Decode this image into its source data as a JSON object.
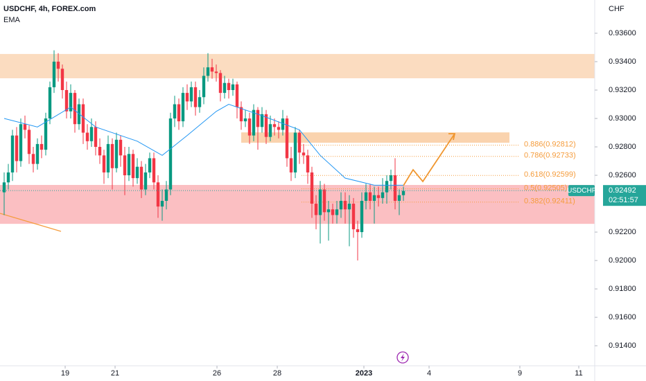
{
  "chart_data": {
    "type": "candlestick",
    "title": "USDCHF, 4h, FOREX.com",
    "indicator": "EMA",
    "currency": "CHF",
    "ylim": [
      0.91259,
      0.93834
    ],
    "yticks": [
      {
        "value": 0.936,
        "label": "0.93600"
      },
      {
        "value": 0.934,
        "label": "0.93400"
      },
      {
        "value": 0.932,
        "label": "0.93200"
      },
      {
        "value": 0.93,
        "label": "0.93000"
      },
      {
        "value": 0.928,
        "label": "0.92800"
      },
      {
        "value": 0.926,
        "label": "0.92600"
      },
      {
        "value": 0.922,
        "label": "0.92200"
      },
      {
        "value": 0.92,
        "label": "0.92000"
      },
      {
        "value": 0.918,
        "label": "0.91800"
      },
      {
        "value": 0.916,
        "label": "0.91600"
      },
      {
        "value": 0.914,
        "label": "0.91400"
      }
    ],
    "xlim": [
      -1,
      142
    ],
    "xticks": [
      {
        "value": 14.67,
        "label": "19"
      },
      {
        "value": 26.67,
        "label": "21"
      },
      {
        "value": 51.17,
        "label": "26"
      },
      {
        "value": 65.67,
        "label": "28"
      },
      {
        "value": 86.5,
        "label": "2023"
      },
      {
        "value": 102.17,
        "label": "4"
      },
      {
        "value": 124,
        "label": "9"
      },
      {
        "value": 138.17,
        "label": "11"
      }
    ],
    "up_color": "#089981",
    "down_color": "#f23645",
    "candles": {
      "open": [
        0.9248,
        0.9255,
        0.9262,
        0.9288,
        0.927,
        0.9296,
        0.9292,
        0.9275,
        0.9268,
        0.9282,
        0.9278,
        0.93,
        0.9322,
        0.934,
        0.9335,
        0.932,
        0.9305,
        0.9318,
        0.9296,
        0.931,
        0.929,
        0.9284,
        0.9294,
        0.928,
        0.9274,
        0.9262,
        0.9282,
        0.9265,
        0.9285,
        0.9274,
        0.926,
        0.9275,
        0.9258,
        0.9266,
        0.925,
        0.9262,
        0.9272,
        0.9255,
        0.9238,
        0.9242,
        0.925,
        0.93,
        0.931,
        0.9298,
        0.9318,
        0.9312,
        0.9322,
        0.9308,
        0.9315,
        0.933,
        0.9336,
        0.9333,
        0.9332,
        0.9318,
        0.9325,
        0.932,
        0.9324,
        0.9308,
        0.9298,
        0.93,
        0.9288,
        0.9306,
        0.9294,
        0.9303,
        0.9287,
        0.9296,
        0.9294,
        0.9292,
        0.93,
        0.9272,
        0.9262,
        0.929,
        0.9276,
        0.9274,
        0.9262,
        0.924,
        0.9232,
        0.925,
        0.9234,
        0.9236,
        0.9232,
        0.9236,
        0.9242,
        0.9236,
        0.924,
        0.9222,
        0.922,
        0.9242,
        0.9248,
        0.9242,
        0.9246,
        0.9244,
        0.9248,
        0.9256,
        0.926,
        0.9242,
        0.9246
      ],
      "high": [
        0.9262,
        0.9268,
        0.9292,
        0.9294,
        0.93,
        0.9302,
        0.9295,
        0.928,
        0.9286,
        0.9288,
        0.9304,
        0.9326,
        0.9348,
        0.9346,
        0.9338,
        0.9326,
        0.9324,
        0.932,
        0.9314,
        0.9314,
        0.9296,
        0.93,
        0.9298,
        0.9286,
        0.9278,
        0.9288,
        0.9286,
        0.929,
        0.9288,
        0.928,
        0.928,
        0.9278,
        0.9272,
        0.927,
        0.9268,
        0.9276,
        0.9276,
        0.926,
        0.925,
        0.9256,
        0.9304,
        0.9316,
        0.9314,
        0.9322,
        0.9324,
        0.9326,
        0.9326,
        0.932,
        0.9336,
        0.9346,
        0.9342,
        0.9338,
        0.9334,
        0.933,
        0.9328,
        0.9328,
        0.9326,
        0.9312,
        0.9306,
        0.9304,
        0.931,
        0.9308,
        0.9308,
        0.9306,
        0.9302,
        0.93,
        0.9298,
        0.9306,
        0.9302,
        0.928,
        0.9294,
        0.9292,
        0.9282,
        0.9278,
        0.9266,
        0.9246,
        0.9256,
        0.9254,
        0.9242,
        0.924,
        0.9242,
        0.9248,
        0.9248,
        0.9246,
        0.9244,
        0.9228,
        0.9248,
        0.9254,
        0.9254,
        0.9252,
        0.9252,
        0.9258,
        0.926,
        0.9264,
        0.9272,
        0.925,
        0.9252
      ],
      "low": [
        0.9232,
        0.925,
        0.9256,
        0.9262,
        0.9266,
        0.9286,
        0.9268,
        0.9262,
        0.9264,
        0.9272,
        0.9274,
        0.9296,
        0.9318,
        0.9326,
        0.9314,
        0.93,
        0.93,
        0.929,
        0.9292,
        0.9282,
        0.9278,
        0.928,
        0.9274,
        0.9268,
        0.9254,
        0.9258,
        0.925,
        0.9262,
        0.9266,
        0.9246,
        0.9256,
        0.9252,
        0.9254,
        0.9244,
        0.9246,
        0.9258,
        0.925,
        0.923,
        0.9228,
        0.9236,
        0.9246,
        0.9294,
        0.9292,
        0.9294,
        0.9306,
        0.9308,
        0.9302,
        0.9304,
        0.931,
        0.9326,
        0.9328,
        0.9326,
        0.9312,
        0.9314,
        0.9314,
        0.9316,
        0.93,
        0.9292,
        0.9294,
        0.9282,
        0.9284,
        0.9278,
        0.929,
        0.9282,
        0.9284,
        0.9288,
        0.9286,
        0.9288,
        0.9266,
        0.9256,
        0.9258,
        0.9268,
        0.9268,
        0.9254,
        0.923,
        0.9222,
        0.9212,
        0.9228,
        0.9214,
        0.9226,
        0.9226,
        0.923,
        0.9226,
        0.921,
        0.9216,
        0.92,
        0.9216,
        0.9236,
        0.9236,
        0.9226,
        0.9238,
        0.924,
        0.924,
        0.925,
        0.9236,
        0.9232,
        0.9242
      ],
      "close": [
        0.9255,
        0.9262,
        0.9288,
        0.927,
        0.9296,
        0.9292,
        0.9275,
        0.9268,
        0.9282,
        0.9278,
        0.93,
        0.9322,
        0.934,
        0.9335,
        0.932,
        0.9305,
        0.9318,
        0.9296,
        0.931,
        0.929,
        0.9284,
        0.9294,
        0.928,
        0.9274,
        0.9262,
        0.9282,
        0.9265,
        0.9285,
        0.9274,
        0.926,
        0.9275,
        0.9258,
        0.9266,
        0.925,
        0.9262,
        0.9272,
        0.9255,
        0.9238,
        0.9242,
        0.925,
        0.93,
        0.931,
        0.9298,
        0.9318,
        0.9312,
        0.9322,
        0.9308,
        0.9315,
        0.933,
        0.9336,
        0.9333,
        0.9332,
        0.9318,
        0.9325,
        0.932,
        0.9324,
        0.9308,
        0.9298,
        0.93,
        0.9288,
        0.9306,
        0.9294,
        0.9303,
        0.9287,
        0.9296,
        0.9294,
        0.9292,
        0.93,
        0.9272,
        0.9262,
        0.929,
        0.9276,
        0.9274,
        0.9262,
        0.924,
        0.9232,
        0.925,
        0.9234,
        0.9236,
        0.9232,
        0.9236,
        0.9242,
        0.9236,
        0.924,
        0.9222,
        0.922,
        0.9242,
        0.9248,
        0.9242,
        0.9246,
        0.9244,
        0.9248,
        0.9256,
        0.926,
        0.9242,
        0.9246,
        0.9249
      ]
    },
    "ema": {
      "color": "#2196f3",
      "x": [
        0,
        8,
        16,
        22,
        32,
        38,
        44,
        51,
        54,
        62,
        71,
        76,
        82,
        89,
        96
      ],
      "values": [
        0.93,
        0.9294,
        0.9308,
        0.9294,
        0.9284,
        0.9274,
        0.9288,
        0.9305,
        0.931,
        0.9302,
        0.9292,
        0.9274,
        0.9258,
        0.9253,
        0.9253
      ]
    },
    "zones": [
      {
        "low": 0.93283,
        "high": 0.93454,
        "color": "#fbdcc0"
      },
      {
        "low": 0.92258,
        "high": 0.92532,
        "color": "#fbbfc2"
      },
      {
        "low": 0.92829,
        "high": 0.92902,
        "color": "#fad3ae"
      }
    ],
    "fib_levels": [
      {
        "value": 0.92812,
        "label": "0.886(0.92812)"
      },
      {
        "value": 0.92733,
        "label": "0.786(0.92733)"
      },
      {
        "value": 0.92599,
        "label": "0.618(0.92599)"
      },
      {
        "value": 0.92505,
        "label": "0.5(0.92505)"
      },
      {
        "value": 0.92411,
        "label": "0.382(0.92411)"
      }
    ],
    "fib_color": "#f59c3c",
    "last_price": {
      "symbol": "USDCHF",
      "value": 0.92492,
      "label": "0.92492",
      "countdown": "02:51:57",
      "color": "#26a69a"
    }
  }
}
